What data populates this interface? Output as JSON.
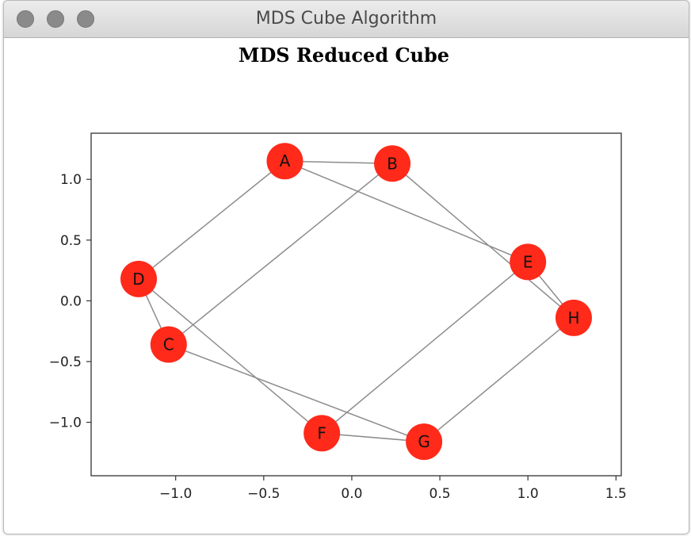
{
  "window": {
    "title": "MDS Cube Algorithm"
  },
  "colors": {
    "node_fill": "#ff2a1a",
    "edge": "#8c8c8c",
    "axis": "#333333"
  },
  "chart_data": {
    "type": "scatter",
    "title": "MDS Reduced Cube",
    "xlabel": "",
    "ylabel": "",
    "xlim": [
      -1.48,
      1.53
    ],
    "ylim": [
      -1.44,
      1.38
    ],
    "xticks": [
      -1.0,
      -0.5,
      0.0,
      0.5,
      1.0,
      1.5
    ],
    "xtick_labels": [
      "−1.0",
      "−0.5",
      "0.0",
      "0.5",
      "1.0",
      "1.5"
    ],
    "yticks": [
      1.0,
      0.5,
      0.0,
      -0.5,
      -1.0
    ],
    "ytick_labels": [
      "1.0",
      "0.5",
      "0.0",
      "−0.5",
      "−1.0"
    ],
    "grid": false,
    "nodes": [
      {
        "label": "A",
        "x": -0.38,
        "y": 1.15
      },
      {
        "label": "B",
        "x": 0.23,
        "y": 1.13
      },
      {
        "label": "C",
        "x": -1.04,
        "y": -0.36
      },
      {
        "label": "D",
        "x": -1.21,
        "y": 0.18
      },
      {
        "label": "E",
        "x": 1.0,
        "y": 0.32
      },
      {
        "label": "F",
        "x": -0.17,
        "y": -1.09
      },
      {
        "label": "G",
        "x": 0.41,
        "y": -1.16
      },
      {
        "label": "H",
        "x": 1.26,
        "y": -0.14
      }
    ],
    "edges": [
      [
        "A",
        "B"
      ],
      [
        "A",
        "D"
      ],
      [
        "A",
        "E"
      ],
      [
        "B",
        "C"
      ],
      [
        "B",
        "H"
      ],
      [
        "C",
        "D"
      ],
      [
        "C",
        "G"
      ],
      [
        "D",
        "F"
      ],
      [
        "E",
        "F"
      ],
      [
        "E",
        "H"
      ],
      [
        "F",
        "G"
      ],
      [
        "G",
        "H"
      ]
    ]
  }
}
